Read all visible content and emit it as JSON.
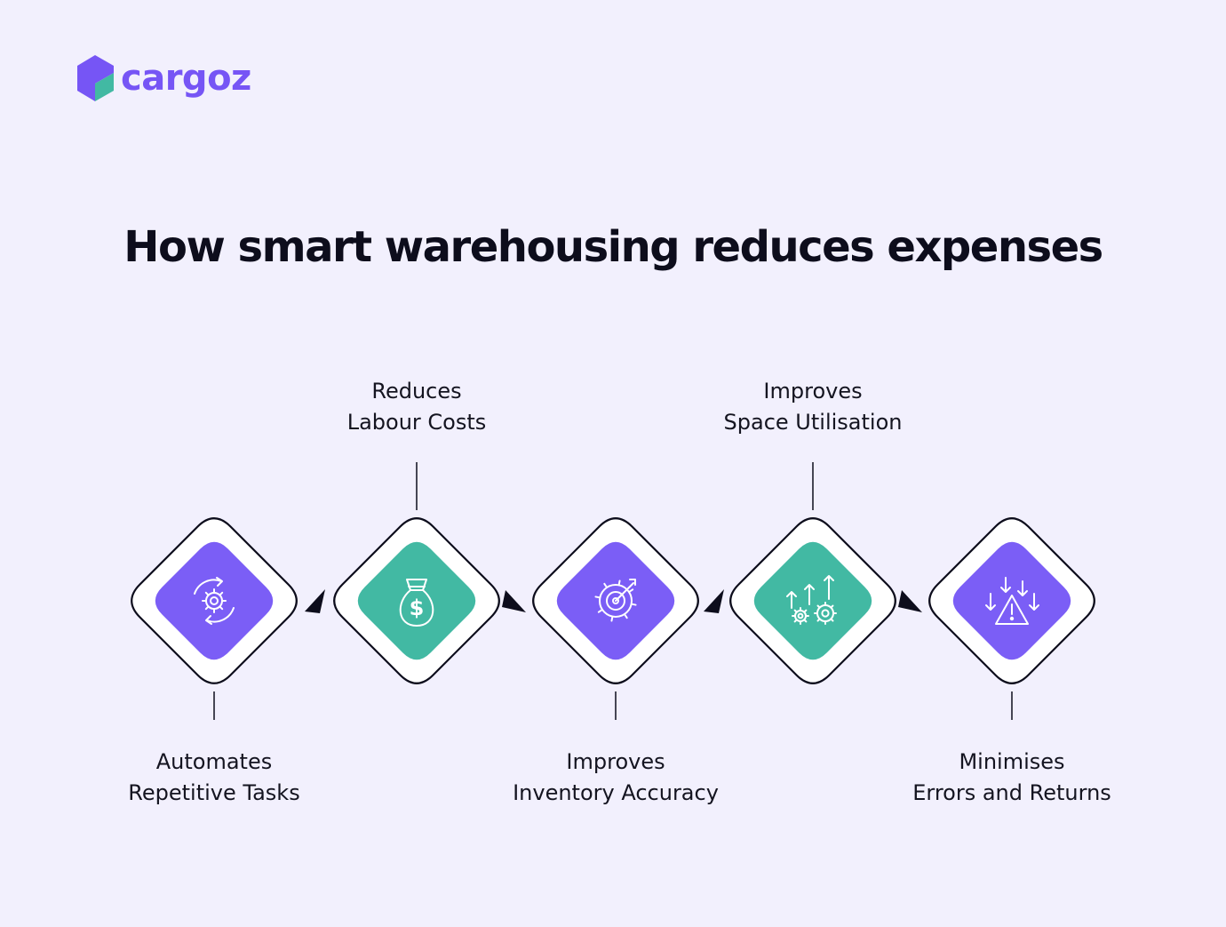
{
  "brand": {
    "name": "cargoz",
    "primary_color": "#7655f5",
    "accent_color": "#42b9a3"
  },
  "title": "How smart warehousing reduces expenses",
  "steps": [
    {
      "line1": "Automates",
      "line2": "Repetitive Tasks",
      "icon": "gear-cycle-icon",
      "color": "#7b5ef6",
      "label_position": "bottom"
    },
    {
      "line1": "Reduces",
      "line2": "Labour Costs",
      "icon": "money-bag-icon",
      "color": "#42b9a3",
      "label_position": "top"
    },
    {
      "line1": "Improves",
      "line2": "Inventory Accuracy",
      "icon": "target-gear-icon",
      "color": "#7b5ef6",
      "label_position": "bottom"
    },
    {
      "line1": "Improves",
      "line2": "Space Utilisation",
      "icon": "gears-growth-icon",
      "color": "#42b9a3",
      "label_position": "top"
    },
    {
      "line1": "Minimises",
      "line2": "Errors and Returns",
      "icon": "warning-decline-icon",
      "color": "#7b5ef6",
      "label_position": "bottom"
    }
  ]
}
